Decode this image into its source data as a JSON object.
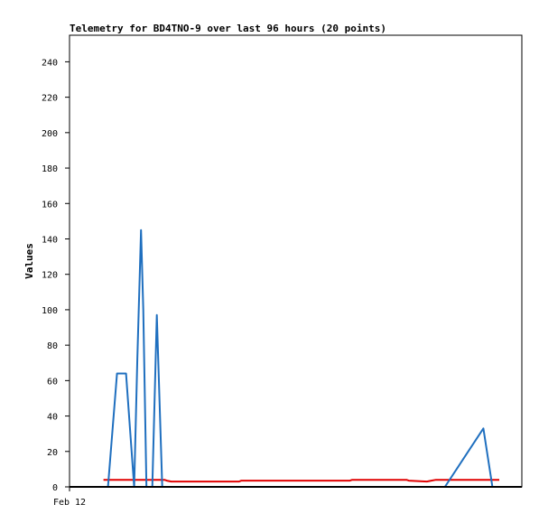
{
  "chart_data": {
    "type": "line",
    "title": "Telemetry for BD4TNO-9 over last 96 hours (20 points)",
    "ylabel": "Values",
    "xlabel": "",
    "ylim": [
      0,
      255
    ],
    "xlim": [
      0,
      100
    ],
    "yticks": [
      0,
      20,
      40,
      60,
      80,
      100,
      120,
      140,
      160,
      180,
      200,
      220,
      240
    ],
    "xticks": [
      {
        "x": 0,
        "label": "Feb 12"
      }
    ],
    "grid": false,
    "legend": "none",
    "series": [
      {
        "color": "#e00000",
        "points": [
          [
            7.5,
            4
          ],
          [
            13,
            4
          ],
          [
            16,
            4
          ],
          [
            19.5,
            4
          ],
          [
            20,
            4
          ],
          [
            21,
            4
          ],
          [
            21.5,
            3.5
          ],
          [
            22.5,
            3
          ],
          [
            28,
            3
          ],
          [
            37.5,
            3
          ],
          [
            38,
            3.5
          ],
          [
            58,
            3.5
          ],
          [
            62,
            3.5
          ],
          [
            62.5,
            4
          ],
          [
            65,
            4
          ],
          [
            74.5,
            4
          ],
          [
            75,
            3.5
          ],
          [
            79,
            3
          ],
          [
            80,
            3.5
          ],
          [
            81,
            4
          ],
          [
            84,
            4
          ],
          [
            95,
            4
          ]
        ]
      },
      {
        "color": "#1f6fbf",
        "points": [
          [
            8.5,
            0
          ],
          [
            10.5,
            64
          ],
          [
            12.5,
            64
          ],
          [
            14.3,
            0
          ],
          [
            15,
            72
          ],
          [
            15.8,
            145
          ],
          [
            16.3,
            100
          ],
          [
            17,
            0
          ],
          [
            18.3,
            0
          ],
          [
            19.3,
            97
          ],
          [
            20.5,
            0
          ],
          [
            83,
            0
          ],
          [
            91.5,
            33
          ],
          [
            93.5,
            0
          ]
        ]
      },
      {
        "color": "#000000",
        "points": [
          [
            0,
            0
          ],
          [
            100,
            0
          ]
        ]
      }
    ]
  }
}
